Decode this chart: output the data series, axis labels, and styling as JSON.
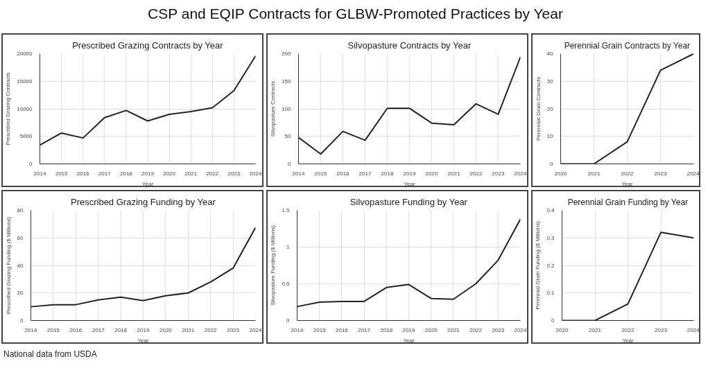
{
  "chart_data": [
    {
      "type": "line",
      "title": "Prescribed Grazing Contracts by Year",
      "xlabel": "Year",
      "ylabel": "Prescribed Grazing Contracts",
      "annotations": [
        "CSP and EQIP Contracts for GLBW-Promoted Practices by Year",
        "National data from USDA"
      ],
      "x": [
        2014,
        2015,
        2016,
        2017,
        2018,
        2019,
        2020,
        2021,
        2022,
        2023,
        2024
      ],
      "series": [
        {
          "color": "#222222",
          "values": [
            3400,
            5600,
            4700,
            8400,
            9700,
            7800,
            9000,
            9500,
            10200,
            13300,
            19600
          ]
        }
      ],
      "xlim": [
        2014,
        2024
      ],
      "xticks": [
        2014,
        2015,
        2016,
        2017,
        2018,
        2019,
        2020,
        2021,
        2022,
        2023,
        2024
      ],
      "ylim": [
        0,
        20000
      ],
      "yticks": [
        0,
        5000,
        10000,
        15000,
        20000
      ],
      "grid": true
    },
    {
      "type": "line",
      "title": "Silvopasture Contracts by Year",
      "xlabel": "Year",
      "ylabel": "Silvopasture Contracts",
      "x": [
        2014,
        2015,
        2016,
        2017,
        2018,
        2019,
        2020,
        2021,
        2022,
        2023,
        2024
      ],
      "series": [
        {
          "color": "#222222",
          "values": [
            48,
            18,
            59,
            43,
            101,
            101,
            74,
            71,
            109,
            90,
            194
          ]
        }
      ],
      "xlim": [
        2014,
        2024
      ],
      "xticks": [
        2014,
        2015,
        2016,
        2017,
        2018,
        2019,
        2020,
        2021,
        2022,
        2023,
        2024
      ],
      "ylim": [
        0,
        200
      ],
      "yticks": [
        0,
        50,
        100,
        150,
        200
      ],
      "grid": true
    },
    {
      "type": "line",
      "title": "Perennial Grain Contracts by Year",
      "xlabel": "Year",
      "ylabel": "Perennial Grain Contracts",
      "x": [
        2020,
        2021,
        2022,
        2023,
        2024
      ],
      "series": [
        {
          "color": "#222222",
          "values": [
            0,
            0,
            8,
            34,
            40
          ]
        }
      ],
      "xlim": [
        2020,
        2024
      ],
      "xticks": [
        2020,
        2021,
        2022,
        2023,
        2024
      ],
      "ylim": [
        0,
        40
      ],
      "yticks": [
        0,
        10,
        20,
        30,
        40
      ],
      "grid": true
    },
    {
      "type": "line",
      "title": "Prescribed Grazing Funding by Year",
      "xlabel": "Year",
      "ylabel": "Prescribed Grazing Funding ($ Millions)",
      "x": [
        2014,
        2015,
        2016,
        2017,
        2018,
        2019,
        2020,
        2021,
        2022,
        2023,
        2024
      ],
      "series": [
        {
          "color": "#222222",
          "values": [
            10,
            11.5,
            11.5,
            15,
            17,
            14.5,
            18,
            20,
            28,
            38,
            67.5
          ]
        }
      ],
      "xlim": [
        2014,
        2024
      ],
      "xticks": [
        2014,
        2015,
        2016,
        2017,
        2018,
        2019,
        2020,
        2021,
        2022,
        2023,
        2024
      ],
      "ylim": [
        0,
        80
      ],
      "yticks": [
        0,
        20,
        40,
        60,
        80
      ],
      "grid": true
    },
    {
      "type": "line",
      "title": "Silvopasture Funding by Year",
      "xlabel": "Year",
      "ylabel": "Silvopasture Funding ($ Millions)",
      "x": [
        2014,
        2015,
        2016,
        2017,
        2018,
        2019,
        2020,
        2021,
        2022,
        2023,
        2024
      ],
      "series": [
        {
          "color": "#222222",
          "values": [
            0.19,
            0.25,
            0.26,
            0.26,
            0.45,
            0.49,
            0.3,
            0.29,
            0.5,
            0.82,
            1.38
          ]
        }
      ],
      "xlim": [
        2014,
        2024
      ],
      "xticks": [
        2014,
        2015,
        2016,
        2017,
        2018,
        2019,
        2020,
        2021,
        2022,
        2023,
        2024
      ],
      "ylim": [
        0,
        1.5
      ],
      "yticks": [
        0,
        {
          "value": 0.5,
          "label": "0.5"
        },
        1,
        1.5
      ],
      "grid": true
    },
    {
      "type": "line",
      "title": "Perennial Grain Funding by Year",
      "xlabel": "Year",
      "ylabel": "Perennial Grain Funding ($ Millions)",
      "x": [
        2020,
        2021,
        2022,
        2023,
        2024
      ],
      "series": [
        {
          "color": "#222222",
          "values": [
            0,
            0,
            0.06,
            0.32,
            0.3
          ]
        }
      ],
      "xlim": [
        2020,
        2024
      ],
      "xticks": [
        2020,
        2021,
        2022,
        2023,
        2024
      ],
      "ylim": [
        0,
        0.4
      ],
      "yticks": [
        0,
        0.1,
        0.2,
        0.3,
        0.4
      ],
      "grid": true
    }
  ]
}
